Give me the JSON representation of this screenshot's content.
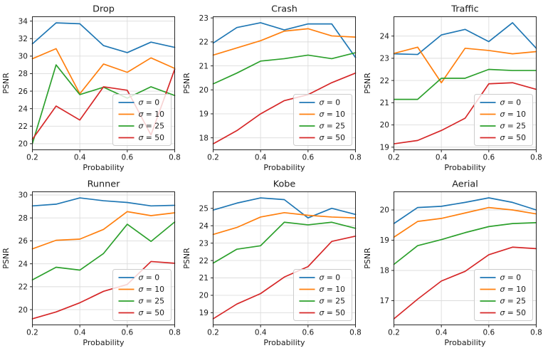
{
  "figure": {
    "background": "#ffffff",
    "grid_color": "#dcdcdc",
    "spine_color": "#262626",
    "text_color": "#1a1a1a",
    "legend": {
      "position": "lower right",
      "frame_fill": "#ffffff",
      "frame_alpha": 0.8,
      "frame_edge": "#cccccc",
      "labels": [
        "σ = 0",
        "σ = 10",
        "σ = 25",
        "σ = 50"
      ]
    },
    "series_colors": [
      "#1f77b4",
      "#ff7f0e",
      "#2ca02c",
      "#d62728"
    ]
  },
  "chart_data": [
    {
      "type": "line",
      "title": "Drop",
      "xlabel": "Probability",
      "ylabel": "PSNR",
      "x": [
        0.2,
        0.3,
        0.4,
        0.5,
        0.6,
        0.7,
        0.8
      ],
      "xlim": [
        0.2,
        0.8
      ],
      "ylim": [
        19.3,
        34.5
      ],
      "xticks": [
        0.2,
        0.4,
        0.6,
        0.8
      ],
      "yticks": [
        20,
        22,
        24,
        26,
        28,
        30,
        32,
        34
      ],
      "grid": true,
      "legend_position": "lower right",
      "series": [
        {
          "name": "σ = 0",
          "color": "#1f77b4",
          "values": [
            31.4,
            33.8,
            33.7,
            31.2,
            30.4,
            31.6,
            31.0
          ]
        },
        {
          "name": "σ = 10",
          "color": "#ff7f0e",
          "values": [
            29.7,
            30.85,
            25.7,
            29.1,
            28.15,
            29.8,
            28.6
          ]
        },
        {
          "name": "σ = 25",
          "color": "#2ca02c",
          "values": [
            20.0,
            29.0,
            25.6,
            26.45,
            25.2,
            26.5,
            25.5
          ]
        },
        {
          "name": "σ = 50",
          "color": "#d62728",
          "values": [
            20.5,
            24.3,
            22.7,
            26.5,
            26.1,
            21.0,
            28.5
          ]
        }
      ]
    },
    {
      "type": "line",
      "title": "Crash",
      "xlabel": "Probability",
      "ylabel": "PSNR",
      "x": [
        0.2,
        0.3,
        0.4,
        0.5,
        0.6,
        0.7,
        0.8
      ],
      "xlim": [
        0.2,
        0.8
      ],
      "ylim": [
        17.5,
        23.05
      ],
      "xticks": [
        0.2,
        0.4,
        0.6,
        0.8
      ],
      "yticks": [
        18,
        19,
        20,
        21,
        22,
        23
      ],
      "grid": true,
      "legend_position": "lower right",
      "series": [
        {
          "name": "σ = 0",
          "color": "#1f77b4",
          "values": [
            21.95,
            22.6,
            22.8,
            22.5,
            22.75,
            22.75,
            21.35
          ]
        },
        {
          "name": "σ = 10",
          "color": "#ff7f0e",
          "values": [
            21.45,
            21.75,
            22.05,
            22.45,
            22.55,
            22.25,
            22.2
          ]
        },
        {
          "name": "σ = 25",
          "color": "#2ca02c",
          "values": [
            20.25,
            20.7,
            21.2,
            21.3,
            21.45,
            21.3,
            21.55
          ]
        },
        {
          "name": "σ = 50",
          "color": "#d62728",
          "values": [
            17.75,
            18.3,
            19.0,
            19.55,
            19.8,
            20.3,
            20.7
          ]
        }
      ]
    },
    {
      "type": "line",
      "title": "Traffic",
      "xlabel": "Probability",
      "ylabel": "PSNR",
      "x": [
        0.2,
        0.3,
        0.4,
        0.5,
        0.6,
        0.7,
        0.8
      ],
      "xlim": [
        0.2,
        0.8
      ],
      "ylim": [
        18.88,
        24.87
      ],
      "xticks": [
        0.2,
        0.4,
        0.6,
        0.8
      ],
      "yticks": [
        19,
        20,
        21,
        22,
        23,
        24
      ],
      "grid": true,
      "legend_position": "lower right",
      "series": [
        {
          "name": "σ = 0",
          "color": "#1f77b4",
          "values": [
            23.2,
            23.17,
            24.05,
            24.3,
            23.75,
            24.6,
            23.45
          ]
        },
        {
          "name": "σ = 10",
          "color": "#ff7f0e",
          "values": [
            23.22,
            23.5,
            21.9,
            23.45,
            23.35,
            23.2,
            23.3
          ]
        },
        {
          "name": "σ = 25",
          "color": "#2ca02c",
          "values": [
            21.15,
            21.15,
            22.1,
            22.1,
            22.5,
            22.45,
            22.45
          ]
        },
        {
          "name": "σ = 50",
          "color": "#d62728",
          "values": [
            19.15,
            19.3,
            19.75,
            20.3,
            21.85,
            21.9,
            21.6
          ]
        }
      ]
    },
    {
      "type": "line",
      "title": "Runner",
      "xlabel": "Probability",
      "ylabel": "PSNR",
      "x": [
        0.2,
        0.3,
        0.4,
        0.5,
        0.6,
        0.7,
        0.8
      ],
      "xlim": [
        0.2,
        0.8
      ],
      "ylim": [
        18.67,
        30.28
      ],
      "xticks": [
        0.2,
        0.4,
        0.6,
        0.8
      ],
      "yticks": [
        20,
        22,
        24,
        26,
        28,
        30
      ],
      "grid": true,
      "legend_position": "lower right",
      "series": [
        {
          "name": "σ = 0",
          "color": "#1f77b4",
          "values": [
            29.05,
            29.2,
            29.75,
            29.5,
            29.35,
            29.05,
            29.1
          ]
        },
        {
          "name": "σ = 10",
          "color": "#ff7f0e",
          "values": [
            25.3,
            26.05,
            26.15,
            27.0,
            28.55,
            28.2,
            28.45
          ]
        },
        {
          "name": "σ = 25",
          "color": "#2ca02c",
          "values": [
            22.6,
            23.7,
            23.45,
            24.9,
            27.45,
            25.95,
            27.65
          ]
        },
        {
          "name": "σ = 50",
          "color": "#d62728",
          "values": [
            19.2,
            19.8,
            20.6,
            21.6,
            22.2,
            24.2,
            24.05
          ]
        }
      ]
    },
    {
      "type": "line",
      "title": "Kobe",
      "xlabel": "Probability",
      "ylabel": "PSNR",
      "x": [
        0.2,
        0.3,
        0.4,
        0.5,
        0.6,
        0.7,
        0.8
      ],
      "xlim": [
        0.2,
        0.8
      ],
      "ylim": [
        18.3,
        25.95
      ],
      "xticks": [
        0.2,
        0.4,
        0.6,
        0.8
      ],
      "yticks": [
        19,
        20,
        21,
        22,
        23,
        24,
        25
      ],
      "grid": true,
      "legend_position": "lower right",
      "series": [
        {
          "name": "σ = 0",
          "color": "#1f77b4",
          "values": [
            24.9,
            25.3,
            25.6,
            25.5,
            24.45,
            25.0,
            24.65
          ]
        },
        {
          "name": "σ = 10",
          "color": "#ff7f0e",
          "values": [
            23.5,
            23.9,
            24.5,
            24.75,
            24.6,
            24.5,
            24.45
          ]
        },
        {
          "name": "σ = 25",
          "color": "#2ca02c",
          "values": [
            21.85,
            22.65,
            22.85,
            24.2,
            24.05,
            24.2,
            23.85
          ]
        },
        {
          "name": "σ = 50",
          "color": "#d62728",
          "values": [
            18.65,
            19.5,
            20.1,
            21.05,
            21.65,
            23.1,
            23.4
          ]
        }
      ]
    },
    {
      "type": "line",
      "title": "Aerial",
      "xlabel": "Probability",
      "ylabel": "PSNR",
      "x": [
        0.2,
        0.3,
        0.4,
        0.5,
        0.6,
        0.7,
        0.8
      ],
      "xlim": [
        0.2,
        0.8
      ],
      "ylim": [
        16.2,
        20.6
      ],
      "xticks": [
        0.2,
        0.4,
        0.6,
        0.8
      ],
      "yticks": [
        17,
        18,
        19,
        20
      ],
      "grid": true,
      "legend_position": "lower right",
      "series": [
        {
          "name": "σ = 0",
          "color": "#1f77b4",
          "values": [
            19.55,
            20.08,
            20.12,
            20.25,
            20.4,
            20.25,
            20.0
          ]
        },
        {
          "name": "σ = 10",
          "color": "#ff7f0e",
          "values": [
            19.1,
            19.62,
            19.72,
            19.9,
            20.08,
            20.0,
            19.87
          ]
        },
        {
          "name": "σ = 25",
          "color": "#2ca02c",
          "values": [
            18.2,
            18.82,
            19.02,
            19.25,
            19.45,
            19.55,
            19.58
          ]
        },
        {
          "name": "σ = 50",
          "color": "#d62728",
          "values": [
            16.4,
            17.05,
            17.65,
            17.97,
            18.52,
            18.77,
            18.72
          ]
        }
      ]
    }
  ]
}
